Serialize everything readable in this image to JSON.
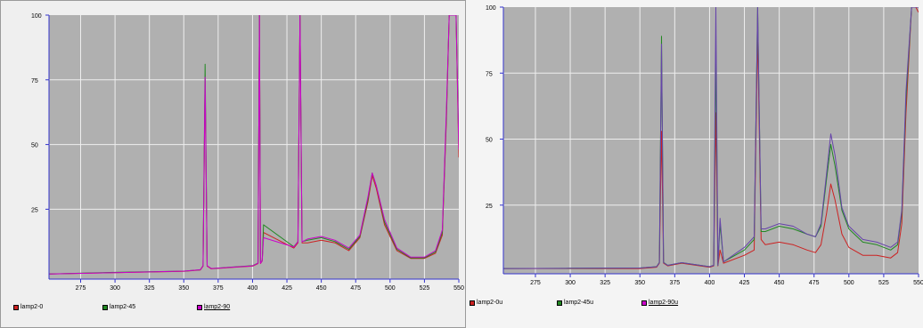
{
  "colors": {
    "plot_bg": "#b0b0b0",
    "grid": "#eeeeee",
    "axis": "#3333cc",
    "red": "#cc2222",
    "green": "#228822",
    "magenta": "#cc00cc",
    "purple": "#6644aa"
  },
  "chart_data": [
    {
      "type": "line",
      "title": "",
      "xlabel": "",
      "ylabel": "",
      "xlim": [
        252,
        550
      ],
      "ylim": [
        -2,
        100
      ],
      "xticks": [
        275,
        300,
        325,
        350,
        375,
        400,
        425,
        450,
        475,
        500,
        525,
        550
      ],
      "yticks": [
        100,
        75,
        50,
        25
      ],
      "grid": true,
      "legend_position": "bottom",
      "series": [
        {
          "name": "lamp2-0",
          "color": "#cc2222",
          "x": [
            252,
            300,
            350,
            362,
            364,
            365.5,
            367,
            370,
            400,
            404,
            405,
            405.8,
            407,
            408,
            430,
            433,
            434.5,
            436,
            440,
            450,
            460,
            470,
            478,
            484,
            487,
            490,
            496,
            505,
            515,
            525,
            533,
            538,
            541,
            543,
            545,
            548,
            550
          ],
          "y": [
            0,
            0.5,
            1,
            1.5,
            3,
            74,
            3,
            2,
            3,
            4,
            100,
            4,
            5,
            16,
            10,
            12,
            100,
            12,
            12,
            13,
            12,
            9,
            14,
            28,
            38,
            33,
            19,
            9,
            6,
            6,
            8,
            15,
            60,
            100,
            100,
            100,
            45
          ]
        },
        {
          "name": "lamp2-45",
          "color": "#228822",
          "x": [
            252,
            300,
            350,
            362,
            364,
            365.5,
            367,
            370,
            400,
            404,
            405,
            405.8,
            407,
            408,
            430,
            433,
            434.5,
            436,
            440,
            450,
            460,
            470,
            478,
            484,
            487,
            490,
            496,
            505,
            515,
            525,
            533,
            538,
            541,
            543,
            545,
            548,
            550
          ],
          "y": [
            0,
            0.6,
            1.1,
            1.6,
            3.2,
            81,
            3.2,
            2.1,
            3.2,
            4.2,
            100,
            4.2,
            5.2,
            19,
            10.5,
            12.5,
            100,
            12.5,
            13,
            14,
            12.5,
            9.5,
            14.5,
            29,
            39,
            34,
            20,
            9.5,
            6.2,
            6.2,
            8.5,
            16,
            62,
            100,
            100,
            100,
            50
          ]
        },
        {
          "name": "lamp2-90",
          "color": "#cc00cc",
          "x": [
            252,
            300,
            350,
            362,
            364,
            365.5,
            367,
            370,
            400,
            404,
            405,
            405.8,
            407,
            408,
            430,
            433,
            434.5,
            436,
            440,
            450,
            460,
            470,
            478,
            484,
            487,
            490,
            496,
            505,
            515,
            525,
            533,
            538,
            541,
            543,
            545,
            548,
            550
          ],
          "y": [
            0,
            0.5,
            1.1,
            1.6,
            3.1,
            76,
            3.1,
            2.1,
            3.1,
            4.1,
            100,
            4.1,
            5.1,
            14,
            10.4,
            12.4,
            100,
            12.4,
            13.5,
            14.5,
            13,
            10,
            15,
            30,
            39,
            34,
            21,
            10,
            6.5,
            6.5,
            9,
            17,
            64,
            100,
            100,
            100,
            48
          ]
        }
      ]
    },
    {
      "type": "line",
      "title": "",
      "xlabel": "",
      "ylabel": "",
      "xlim": [
        252,
        550
      ],
      "ylim": [
        -1,
        100
      ],
      "xticks": [
        275,
        300,
        325,
        350,
        375,
        400,
        425,
        450,
        475,
        500,
        525,
        550
      ],
      "yticks": [
        100,
        75,
        50,
        25
      ],
      "grid": true,
      "legend_position": "bottom",
      "series": [
        {
          "name": "lamp2-0u",
          "color": "#cc2222",
          "x": [
            252,
            300,
            350,
            362,
            364,
            365.5,
            367,
            370,
            380,
            400,
            403,
            404.5,
            406,
            407.5,
            410,
            425,
            432,
            434.5,
            437,
            440,
            450,
            460,
            470,
            476,
            480,
            484,
            487,
            490,
            495,
            500,
            510,
            520,
            530,
            535,
            538,
            541,
            545,
            548,
            550
          ],
          "y": [
            1,
            1,
            1,
            1.5,
            3,
            53,
            3,
            2,
            3,
            1.5,
            2,
            60,
            2,
            8,
            3,
            6,
            8,
            90,
            12,
            10,
            11,
            10,
            8,
            7,
            10,
            22,
            33,
            27,
            14,
            9,
            6,
            6,
            5,
            7,
            18,
            60,
            100,
            100,
            98
          ]
        },
        {
          "name": "lamp2-45u",
          "color": "#228822",
          "x": [
            252,
            300,
            350,
            362,
            364,
            365.5,
            367,
            370,
            380,
            400,
            403,
            404.5,
            406,
            407.5,
            410,
            425,
            432,
            434.5,
            437,
            440,
            450,
            460,
            470,
            476,
            480,
            484,
            487,
            490,
            495,
            500,
            510,
            520,
            530,
            535,
            538,
            541,
            545,
            548,
            550
          ],
          "y": [
            1,
            1.1,
            1.2,
            1.7,
            3.3,
            89,
            3.3,
            2.2,
            3.2,
            1.7,
            2.2,
            84,
            2.2,
            18,
            3.5,
            8,
            12,
            100,
            15,
            15,
            17,
            16,
            14,
            13,
            17,
            35,
            48,
            40,
            23,
            16,
            11,
            10,
            8,
            10,
            22,
            65,
            100,
            100,
            100
          ]
        },
        {
          "name": "lamp2-90u",
          "color": "#6644aa",
          "x": [
            252,
            300,
            350,
            362,
            364,
            365.5,
            367,
            370,
            380,
            400,
            403,
            404.5,
            406,
            407.5,
            410,
            425,
            432,
            434.5,
            437,
            440,
            450,
            460,
            470,
            476,
            480,
            484,
            487,
            490,
            495,
            500,
            510,
            520,
            530,
            535,
            538,
            541,
            545,
            548,
            550
          ],
          "y": [
            1,
            1.1,
            1.2,
            1.7,
            3.2,
            86,
            3.2,
            2.2,
            3.2,
            1.7,
            2.2,
            100,
            2.2,
            20,
            3.5,
            9,
            13,
            100,
            16,
            16,
            18,
            17,
            14,
            13,
            18,
            37,
            52,
            44,
            24,
            17,
            12,
            11,
            9,
            11,
            23,
            68,
            100,
            100,
            100
          ]
        }
      ]
    }
  ]
}
